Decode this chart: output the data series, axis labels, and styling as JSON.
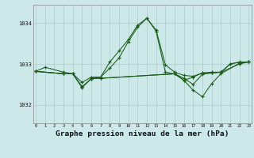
{
  "background_color": "#cce8e8",
  "grid_color": "#aacccc",
  "line_color": "#1a5c1a",
  "title": "Graphe pression niveau de la mer (hPa)",
  "title_fontsize": 6.8,
  "ylabel_ticks": [
    1032,
    1033,
    1034
  ],
  "xlim": [
    -0.3,
    23.3
  ],
  "ylim": [
    1031.55,
    1034.45
  ],
  "hours": [
    0,
    1,
    2,
    3,
    4,
    5,
    6,
    7,
    8,
    9,
    10,
    11,
    12,
    13,
    14,
    15,
    16,
    17,
    18,
    19,
    20,
    21,
    22,
    23
  ],
  "line1_x": [
    0,
    1,
    3,
    4,
    5,
    6,
    7,
    8,
    9,
    10,
    11,
    12,
    13,
    14,
    15,
    16,
    17,
    18,
    19,
    20,
    21,
    22,
    23
  ],
  "line1_y": [
    1032.82,
    1032.92,
    1032.8,
    1032.76,
    1032.55,
    1032.68,
    1032.68,
    1033.05,
    1033.32,
    1033.6,
    1033.95,
    1034.12,
    1033.83,
    1032.98,
    1032.8,
    1032.72,
    1032.7,
    1032.78,
    1032.78,
    1032.8,
    1033.0,
    1033.05,
    1033.05
  ],
  "line2_x": [
    0,
    3,
    4,
    5,
    6,
    7,
    15,
    16,
    17,
    18,
    19,
    20,
    22,
    23
  ],
  "line2_y": [
    1032.82,
    1032.76,
    1032.76,
    1032.42,
    1032.65,
    1032.65,
    1032.76,
    1032.6,
    1032.36,
    1032.2,
    1032.52,
    1032.76,
    1033.02,
    1033.05
  ],
  "line3_x": [
    0,
    3,
    4,
    5,
    6,
    7,
    8,
    9,
    10,
    11,
    12,
    13,
    14,
    15,
    16,
    17,
    18,
    19,
    20,
    21,
    22,
    23
  ],
  "line3_y": [
    1032.82,
    1032.76,
    1032.76,
    1032.44,
    1032.64,
    1032.68,
    1032.9,
    1033.15,
    1033.55,
    1033.9,
    1034.12,
    1033.8,
    1032.8,
    1032.76,
    1032.6,
    1032.68,
    1032.78,
    1032.8,
    1032.8,
    1033.0,
    1033.04,
    1033.05
  ],
  "line4_x": [
    0,
    3,
    4,
    5,
    6,
    7,
    15,
    16,
    17,
    18,
    19,
    20,
    22,
    23
  ],
  "line4_y": [
    1032.82,
    1032.76,
    1032.76,
    1032.44,
    1032.64,
    1032.65,
    1032.76,
    1032.65,
    1032.5,
    1032.75,
    1032.78,
    1032.8,
    1033.0,
    1033.05
  ]
}
